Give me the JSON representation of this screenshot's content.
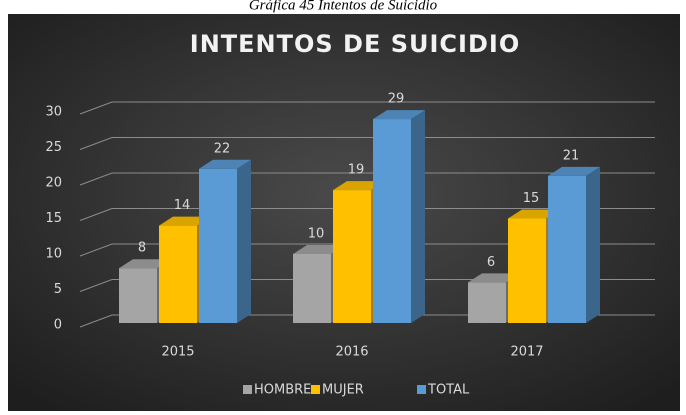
{
  "chart_data": {
    "type": "bar3d",
    "caption": "Gráfica 45 Intentos de Suicidio",
    "title": "INTENTOS  DE SUICIDIO",
    "categories": [
      "2015",
      "2016",
      "2017"
    ],
    "series": [
      {
        "name": "HOMBRE",
        "color": "#a5a5a5",
        "values": [
          8,
          10,
          6
        ]
      },
      {
        "name": "MUJER",
        "color": "#ffc000",
        "values": [
          14,
          19,
          15
        ]
      },
      {
        "name": "TOTAL",
        "color": "#5b9bd5",
        "values": [
          22,
          29,
          21
        ]
      }
    ],
    "ylim": [
      0,
      30
    ],
    "yticks": [
      0,
      5,
      10,
      15,
      20,
      25,
      30
    ],
    "grid": true,
    "legend": "bottom"
  }
}
